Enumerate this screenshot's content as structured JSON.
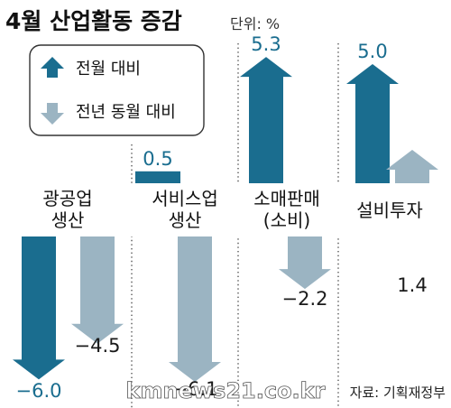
{
  "title": "4월 산업활동 증감",
  "unit": "단위: %",
  "legend": [
    {
      "label": "전월 대비",
      "color": "#1a6d8f"
    },
    {
      "label": "전년 동월 대비",
      "color": "#9bb4c2"
    }
  ],
  "source": "자료: 기획재정부",
  "watermark": "kmnews21.co.kr",
  "chart_data": {
    "type": "bar",
    "categories": [
      "광공업\n생산",
      "서비스업\n생산",
      "소매판매\n(소비)",
      "설비투자"
    ],
    "series": [
      {
        "name": "전월 대비",
        "values": [
          -6.0,
          0.5,
          5.3,
          5.0
        ],
        "labels": [
          "−6.0",
          "0.5",
          "5.3",
          "5.0"
        ],
        "color": "#1a6d8f"
      },
      {
        "name": "전년 동월 대비",
        "values": [
          -4.5,
          -6.1,
          -2.2,
          1.4
        ],
        "labels": [
          "−4.5",
          "−6.1",
          "−2.2",
          "1.4"
        ],
        "color": "#9bb4c2"
      }
    ],
    "category_labels": [
      [
        "광공업",
        "생산"
      ],
      [
        "서비스업",
        "생산"
      ],
      [
        "소매판매",
        "(소비)"
      ],
      [
        "설비투자"
      ]
    ],
    "grid": false
  }
}
